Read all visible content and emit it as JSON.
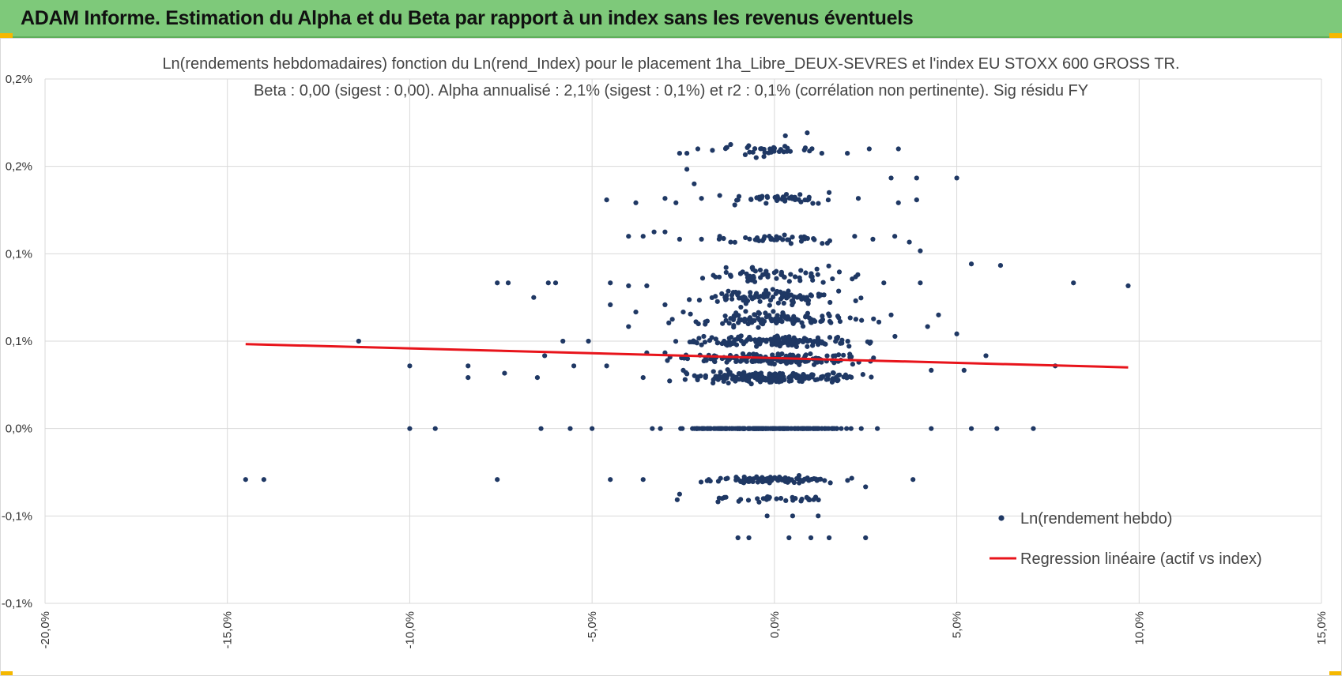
{
  "header": {
    "title": "ADAM Informe. Estimation du Alpha et du Beta par rapport à un index sans les revenus éventuels",
    "background_color": "#7ec97a",
    "accent_color": "#f5b800"
  },
  "chart_data": {
    "type": "scatter",
    "title_line1": "Ln(rendements hebdomadaires) fonction du Ln(rend_Index) pour le placement 1ha_Libre_DEUX-SEVRES et l'index EU STOXX 600 GROSS TR.",
    "title_line2": "Beta : 0,00 (sigest : 0,00). Alpha annualisé : 2,1% (sigest : 0,1%) et r2 : 0,1% (corrélation non pertinente). Sig résidu FY",
    "xlabel": "",
    "ylabel": "",
    "xlim": [
      -0.2,
      0.15
    ],
    "ylim": [
      -0.0012,
      0.0024
    ],
    "x_ticks": [
      -0.2,
      -0.15,
      -0.1,
      -0.05,
      0.0,
      0.05,
      0.1,
      0.15
    ],
    "x_tick_labels": [
      "-20,0%",
      "-15,0%",
      "-10,0%",
      "-5,0%",
      "0,0%",
      "5,0%",
      "10,0%",
      "15,0%"
    ],
    "y_ticks": [
      -0.0012,
      -0.0006,
      0.0,
      0.0006,
      0.0012,
      0.0018,
      0.0024
    ],
    "y_tick_labels": [
      "-0,1%",
      "-0,1%",
      "0,0%",
      "0,1%",
      "0,1%",
      "0,2%",
      "0,2%"
    ],
    "grid": true,
    "point_color": "#1f3864",
    "line_color": "#e8141b",
    "series": [
      {
        "name": "Ln(rendement hebdo)",
        "kind": "points",
        "points": [
          [
            -0.145,
            -0.00035
          ],
          [
            -0.14,
            -0.00035
          ],
          [
            -0.076,
            -0.00035
          ],
          [
            -0.045,
            -0.00035
          ],
          [
            -0.036,
            -0.00035
          ],
          [
            -0.026,
            -0.00045
          ],
          [
            -0.018,
            -0.00035
          ],
          [
            0.012,
            -0.00035
          ],
          [
            0.025,
            -0.0004
          ],
          [
            0.038,
            -0.00035
          ],
          [
            -0.002,
            -0.0006
          ],
          [
            0.005,
            -0.0006
          ],
          [
            0.012,
            -0.0006
          ],
          [
            -0.01,
            -0.00075
          ],
          [
            -0.007,
            -0.00075
          ],
          [
            0.004,
            -0.00075
          ],
          [
            0.01,
            -0.00075
          ],
          [
            0.015,
            -0.00075
          ],
          [
            0.025,
            -0.00075
          ],
          [
            -0.1,
            0.0
          ],
          [
            -0.093,
            0.0
          ],
          [
            -0.064,
            0.0
          ],
          [
            -0.056,
            0.0
          ],
          [
            -0.05,
            0.0
          ],
          [
            0.043,
            0.0
          ],
          [
            0.054,
            0.0
          ],
          [
            0.061,
            0.0
          ],
          [
            0.071,
            0.0
          ],
          [
            -0.114,
            0.0006
          ],
          [
            -0.1,
            0.00043
          ],
          [
            -0.084,
            0.00043
          ],
          [
            -0.084,
            0.00035
          ],
          [
            -0.074,
            0.00038
          ],
          [
            -0.065,
            0.00035
          ],
          [
            -0.063,
            0.0005
          ],
          [
            -0.058,
            0.0006
          ],
          [
            -0.051,
            0.0006
          ],
          [
            -0.055,
            0.00043
          ],
          [
            -0.046,
            0.00043
          ],
          [
            -0.036,
            0.00035
          ],
          [
            -0.035,
            0.00052
          ],
          [
            -0.03,
            0.00052
          ],
          [
            -0.025,
            0.0004
          ],
          [
            0.043,
            0.0004
          ],
          [
            0.052,
            0.0004
          ],
          [
            0.058,
            0.0005
          ],
          [
            0.077,
            0.00043
          ],
          [
            -0.076,
            0.001
          ],
          [
            -0.073,
            0.001
          ],
          [
            -0.062,
            0.001
          ],
          [
            -0.06,
            0.001
          ],
          [
            -0.066,
            0.0009
          ],
          [
            -0.045,
            0.001
          ],
          [
            -0.04,
            0.00098
          ],
          [
            -0.035,
            0.00098
          ],
          [
            -0.045,
            0.00085
          ],
          [
            -0.04,
            0.0007
          ],
          [
            -0.03,
            0.00085
          ],
          [
            -0.025,
            0.0008
          ],
          [
            -0.038,
            0.0008
          ],
          [
            -0.028,
            0.00075
          ],
          [
            0.03,
            0.001
          ],
          [
            0.04,
            0.001
          ],
          [
            0.032,
            0.00078
          ],
          [
            0.045,
            0.00078
          ],
          [
            0.042,
            0.0007
          ],
          [
            0.05,
            0.00065
          ],
          [
            -0.04,
            0.00132
          ],
          [
            -0.036,
            0.00132
          ],
          [
            -0.033,
            0.00135
          ],
          [
            -0.03,
            0.00135
          ],
          [
            -0.026,
            0.0013
          ],
          [
            -0.02,
            0.0013
          ],
          [
            -0.015,
            0.00132
          ],
          [
            -0.012,
            0.00128
          ],
          [
            0.022,
            0.00132
          ],
          [
            0.027,
            0.0013
          ],
          [
            0.033,
            0.00132
          ],
          [
            0.037,
            0.00128
          ],
          [
            0.04,
            0.00122
          ],
          [
            0.054,
            0.00113
          ],
          [
            0.062,
            0.00112
          ],
          [
            0.082,
            0.001
          ],
          [
            0.097,
            0.00098
          ],
          [
            -0.046,
            0.00157
          ],
          [
            -0.038,
            0.00155
          ],
          [
            -0.03,
            0.00158
          ],
          [
            -0.027,
            0.00155
          ],
          [
            -0.02,
            0.00158
          ],
          [
            -0.015,
            0.0016
          ],
          [
            -0.01,
            0.00157
          ],
          [
            0.015,
            0.00162
          ],
          [
            0.023,
            0.00158
          ],
          [
            0.032,
            0.00172
          ],
          [
            0.039,
            0.00172
          ],
          [
            0.039,
            0.00157
          ],
          [
            0.034,
            0.00155
          ],
          [
            0.05,
            0.00172
          ],
          [
            -0.024,
            0.00178
          ],
          [
            -0.022,
            0.00168
          ],
          [
            -0.024,
            0.00189
          ],
          [
            -0.026,
            0.00189
          ],
          [
            -0.017,
            0.00191
          ],
          [
            -0.013,
            0.00193
          ],
          [
            -0.008,
            0.00188
          ],
          [
            -0.005,
            0.00186
          ],
          [
            0.013,
            0.00189
          ],
          [
            0.02,
            0.00189
          ],
          [
            0.026,
            0.00192
          ],
          [
            0.034,
            0.00192
          ],
          [
            -0.021,
            0.00192
          ],
          [
            0.003,
            0.00201
          ],
          [
            0.009,
            0.00203
          ],
          [
            -0.012,
            0.00195
          ]
        ]
      },
      {
        "name": "Regression linéaire (actif vs index)",
        "kind": "line",
        "x": [
          -0.145,
          0.097
        ],
        "y": [
          0.00058,
          0.00042
        ]
      }
    ],
    "legend_position": "bottom-right"
  }
}
